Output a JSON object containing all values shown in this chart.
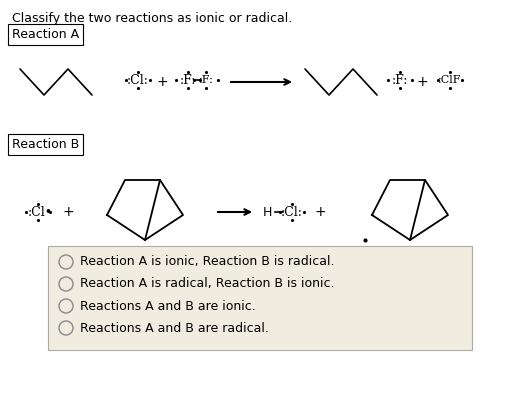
{
  "title": "Classify the two reactions as ionic or radical.",
  "reaction_a_label": "Reaction A",
  "reaction_b_label": "Reaction B",
  "options": [
    "Reaction A is ionic, Reaction B is radical.",
    "Reaction A is radical, Reaction B is ionic.",
    "Reactions A and B are ionic.",
    "Reactions A and B are radical."
  ],
  "bg_color": "#ffffff",
  "box_bg": "#f0ede0",
  "text_color": "#000000",
  "font_size": 9,
  "title_font_size": 9
}
